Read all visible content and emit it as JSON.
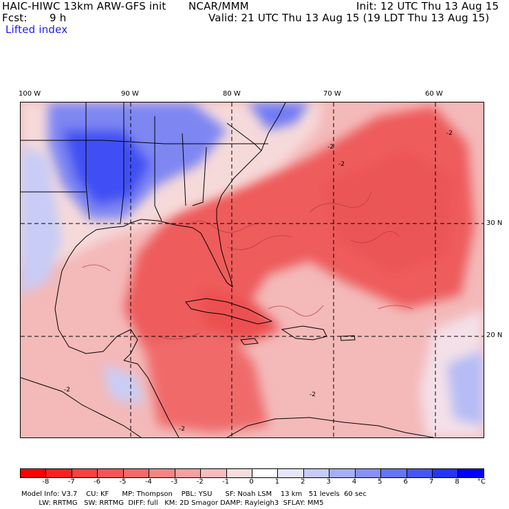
{
  "header": {
    "model_title": "HAIC-HIWC 13km ARW-GFS init",
    "org": "NCAR/MMM",
    "init": "Init: 12 UTC Thu 13 Aug 15",
    "fcst_label": "Fcst:",
    "fcst_value": "9 h",
    "valid": "Valid: 21 UTC Thu 13 Aug 15 (19 LDT Thu 13 Aug 15)",
    "field": "Lifted index"
  },
  "map": {
    "lon_labels": [
      "100 W",
      "90 W",
      "80 W",
      "70 W",
      "60 W"
    ],
    "lat_labels": [
      "30 N",
      "20 N"
    ],
    "contour_labels": [
      "-2",
      "-2",
      "-2",
      "-2",
      "-2",
      "-2"
    ],
    "colors": {
      "ocean_warm": "#f2a6a6",
      "strong_negative": "#ef5454",
      "neutral": "#fdf0f0",
      "stable_blue": "#4f5ef0",
      "deep_blue": "#2233ff",
      "land_outline": "#000000"
    }
  },
  "colorbar": {
    "labels": [
      "-8",
      "-7",
      "-6",
      "-5",
      "-4",
      "-3",
      "-2",
      "-1",
      "0",
      "1",
      "2",
      "3",
      "4",
      "5",
      "6",
      "7",
      "8"
    ],
    "unit": "°C",
    "colors": [
      "#ff0000",
      "#ff2020",
      "#ff4040",
      "#f55555",
      "#f46a6a",
      "#f58585",
      "#f6a0a0",
      "#f8bcbc",
      "#fbdcdc",
      "#ffffff",
      "#e4e6fc",
      "#c6cbfb",
      "#a6aef9",
      "#8791f8",
      "#6674f6",
      "#4556f5",
      "#2436f3",
      "#0000ff"
    ]
  },
  "info": {
    "line1": "Model Info: V3.7    CU: KF      MP: Thompson    PBL: YSU      SF: Noah LSM    13 km   51 levels  60 sec",
    "line2": "        LW: RRTMG   SW: RRTMG  DIFF: full   KM: 2D Smagor DAMP: Rayleigh3  SFLAY: MM5"
  }
}
